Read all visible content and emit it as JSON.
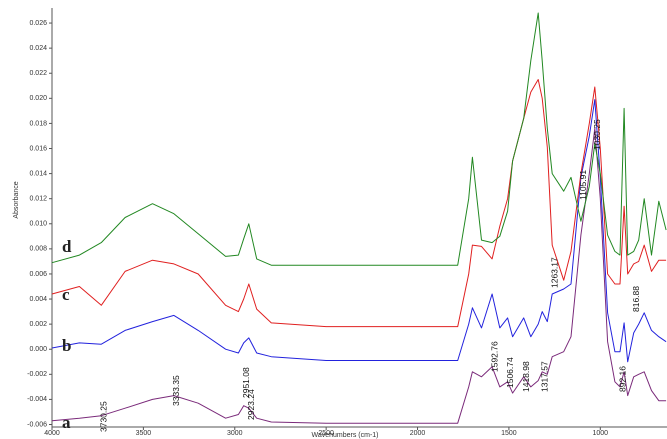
{
  "chart_data": {
    "type": "line",
    "x_label": "Wavenumbers (cm-1)",
    "y_label": "Absorbance",
    "xlim": [
      4000,
      635
    ],
    "ylim": [
      -0.0062,
      0.0272
    ],
    "xticks": [
      4000,
      3500,
      3000,
      2500,
      2000,
      1500,
      1000
    ],
    "yticks": [
      -0.006,
      -0.004,
      -0.002,
      {
        "value": 0,
        "label": "0.000"
      },
      0.002,
      0.004,
      0.006,
      0.008,
      {
        "value": 0.01,
        "label": "0.010"
      },
      0.012,
      0.014,
      0.016,
      0.018,
      {
        "value": 0.02,
        "label": "0.020"
      },
      0.022,
      0.024,
      0.026
    ],
    "x": [
      4000,
      3850,
      3730,
      3600,
      3450,
      3333,
      3200,
      3050,
      2980,
      2951,
      2923,
      2880,
      2800,
      2500,
      2000,
      1780,
      1720,
      1700,
      1650,
      1592,
      1550,
      1507,
      1480,
      1419,
      1380,
      1340,
      1318,
      1290,
      1263,
      1200,
      1160,
      1106,
      1060,
      1030,
      1000,
      960,
      920,
      892,
      870,
      850,
      817,
      790,
      760,
      720,
      680,
      640
    ],
    "series": [
      {
        "name": "a",
        "color": "#7a2a7a",
        "values": [
          -0.0057,
          -0.0055,
          -0.0053,
          -0.0047,
          -0.004,
          -0.0037,
          -0.0043,
          -0.0055,
          -0.0052,
          -0.0045,
          -0.0047,
          -0.0055,
          -0.0058,
          -0.0059,
          -0.0059,
          -0.0059,
          -0.003,
          -0.0018,
          -0.0022,
          -0.0014,
          -0.003,
          -0.0026,
          -0.0035,
          -0.0022,
          -0.003,
          -0.0025,
          -0.0018,
          -0.002,
          -0.0006,
          -0.0002,
          0.001,
          0.0091,
          0.014,
          0.0176,
          0.012,
          0.0006,
          -0.0026,
          -0.003,
          -0.0018,
          -0.0037,
          -0.0022,
          -0.002,
          -0.0018,
          -0.0033,
          -0.0041,
          -0.0041
        ]
      },
      {
        "name": "b",
        "color": "#2222dd",
        "values": [
          0.0001,
          0.0005,
          0.0004,
          0.0015,
          0.0022,
          0.0027,
          0.0015,
          0,
          -0.0003,
          0.0005,
          0.0009,
          -0.0003,
          -0.0006,
          -0.0009,
          -0.0009,
          -0.0009,
          0.002,
          0.0033,
          0.0017,
          0.0044,
          0.0017,
          0.0025,
          0.001,
          0.0025,
          0.001,
          0.002,
          0.003,
          0.0022,
          0.0044,
          0.0048,
          0.0052,
          0.0137,
          0.017,
          0.0199,
          0.0137,
          0.0029,
          -0.0002,
          -0.0002,
          0.0021,
          -0.001,
          0.0013,
          0.002,
          0.0029,
          0.0015,
          0.001,
          0.0006
        ]
      },
      {
        "name": "c",
        "color": "#e02020",
        "values": [
          0.0044,
          0.005,
          0.0035,
          0.0062,
          0.0071,
          0.0068,
          0.006,
          0.0035,
          0.003,
          0.004,
          0.0052,
          0.0032,
          0.0021,
          0.0018,
          0.0018,
          0.0018,
          0.006,
          0.0083,
          0.0082,
          0.0072,
          0.0098,
          0.012,
          0.015,
          0.0184,
          0.0205,
          0.0215,
          0.02,
          0.0161,
          0.0083,
          0.0055,
          0.0078,
          0.014,
          0.018,
          0.0209,
          0.016,
          0.006,
          0.0052,
          0.0052,
          0.0114,
          0.006,
          0.0068,
          0.007,
          0.0083,
          0.0062,
          0.0071,
          0.0071
        ]
      },
      {
        "name": "d",
        "color": "#228822",
        "values": [
          0.0069,
          0.0075,
          0.0085,
          0.0105,
          0.0116,
          0.0108,
          0.0092,
          0.0074,
          0.0075,
          0.0088,
          0.01,
          0.0072,
          0.0067,
          0.0067,
          0.0067,
          0.0067,
          0.012,
          0.0153,
          0.0087,
          0.0085,
          0.009,
          0.011,
          0.015,
          0.0184,
          0.023,
          0.0268,
          0.023,
          0.0176,
          0.014,
          0.0126,
          0.0137,
          0.0102,
          0.013,
          0.0164,
          0.014,
          0.0091,
          0.0078,
          0.0075,
          0.0192,
          0.0075,
          0.0078,
          0.0087,
          0.012,
          0.0075,
          0.0118,
          0.0095
        ]
      }
    ],
    "annotations": [
      "3730.25",
      "3333.35",
      "2951.08",
      "2923.24",
      "1592.76",
      "1506.74",
      "1418.98",
      "1317.57",
      "1263.17",
      "1105.91",
      "1030.25",
      "892.16",
      "816.88"
    ]
  }
}
